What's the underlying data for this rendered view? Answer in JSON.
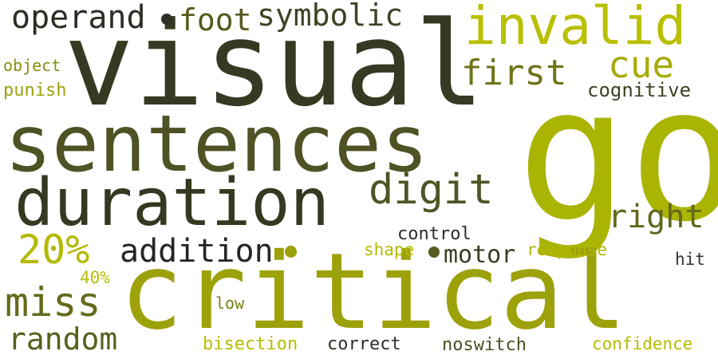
{
  "words": [
    {
      "text": "visual"
    },
    {
      "text": "go"
    },
    {
      "text": "critical"
    },
    {
      "text": "sentences"
    },
    {
      "text": "duration"
    },
    {
      "text": "invalid"
    },
    {
      "text": "digit"
    },
    {
      "text": "cue"
    },
    {
      "text": "first"
    },
    {
      "text": "right"
    },
    {
      "text": "addition"
    },
    {
      "text": "20%"
    },
    {
      "text": "miss"
    },
    {
      "text": "operand"
    },
    {
      "text": "foot"
    },
    {
      "text": "symbolic"
    },
    {
      "text": "random"
    },
    {
      "text": "motor"
    },
    {
      "text": "cognitive"
    },
    {
      "text": "object"
    },
    {
      "text": "punish"
    },
    {
      "text": "control"
    },
    {
      "text": "shape"
    },
    {
      "text": "response"
    },
    {
      "text": "hit"
    },
    {
      "text": "40%"
    },
    {
      "text": "low"
    },
    {
      "text": "bisection"
    },
    {
      "text": "correct"
    },
    {
      "text": "noswitch"
    },
    {
      "text": "confidence"
    }
  ],
  "colors": {
    "background": "#ffffff",
    "dark": "#2e3321",
    "olive_dark": "#3d4024",
    "olive": "#5a5f1e",
    "olive_mid": "#7c8114",
    "lime": "#a7ad06",
    "lime_bright": "#b5bb00",
    "black": "#222222"
  }
}
